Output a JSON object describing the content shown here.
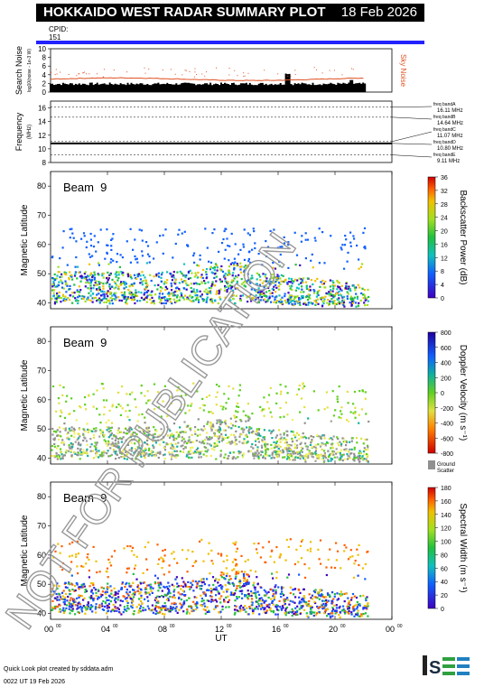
{
  "header": {
    "title": "HOKKAIDO WEST RADAR SUMMARY PLOT",
    "date": "18 Feb 2026"
  },
  "cpid": {
    "label": "CPID:",
    "value": "151"
  },
  "footer": {
    "credit": "Quick Look plot created by sddata.adm",
    "timestamp": "0022 UT 19 Feb 2026"
  },
  "logo_text": "ISEE",
  "watermark": "NOT FOR PUBLICATION",
  "colors": {
    "title_bg": "#000000",
    "cpid_bar": "#2222ff",
    "sky_noise": "#e05020"
  },
  "chart_data": [
    {
      "type": "bar",
      "title": "",
      "ylabel": "Search Noise",
      "ylabel_units": "log10(noise - 1e-3 W)",
      "right_label": "Sky Noise",
      "yticks": [
        "10",
        "8",
        "6",
        "4",
        "2",
        "0"
      ],
      "ylim": [
        0,
        10
      ],
      "xlim": [
        0,
        24
      ]
    },
    {
      "type": "line",
      "ylabel": "Frequency",
      "ylabel_units": "(MHz)",
      "yticks": [
        "16",
        "14",
        "12",
        "10",
        "8"
      ],
      "ylim": [
        8,
        17
      ],
      "freq_bands": [
        {
          "name": "freq bandA",
          "value": "16.11 MHz"
        },
        {
          "name": "freq bandB",
          "value": "14.64 MHz"
        },
        {
          "name": "freq bandC",
          "value": "11.07 MHz"
        },
        {
          "name": "freq bandD",
          "value": "10.80 MHz"
        },
        {
          "name": "freq bandE",
          "value": "9.11 MHz"
        }
      ]
    },
    {
      "type": "heatmap",
      "beam": "Beam  9",
      "ylabel": "Magnetic Latitude",
      "yticks": [
        "80",
        "70",
        "60",
        "50",
        "40"
      ],
      "ylim": [
        38,
        85
      ],
      "colorbar_label": "Backscatter Power (dB)",
      "colorbar_ticks": [
        "36",
        "32",
        "28",
        "24",
        "20",
        "16",
        "12",
        "8",
        "4",
        "0"
      ]
    },
    {
      "type": "heatmap",
      "beam": "Beam  9",
      "ylabel": "Magnetic Latitude",
      "yticks": [
        "80",
        "70",
        "60",
        "50",
        "40"
      ],
      "ylim": [
        38,
        85
      ],
      "colorbar_label": "Doppler Velocity (m s⁻¹)",
      "colorbar_ticks": [
        "800",
        "600",
        "400",
        "200",
        "0",
        "-200",
        "-400",
        "-600",
        "-800"
      ],
      "ground_scatter_label": "Ground Scatter"
    },
    {
      "type": "heatmap",
      "beam": "Beam  9",
      "ylabel": "Magnetic Latitude",
      "yticks": [
        "80",
        "70",
        "60",
        "50",
        "40"
      ],
      "ylim": [
        38,
        85
      ],
      "colorbar_label": "Spectral Width (m s⁻¹)",
      "colorbar_ticks": [
        "180",
        "160",
        "140",
        "120",
        "100",
        "80",
        "60",
        "40",
        "20",
        "0"
      ],
      "xlabel": "UT",
      "xticks": [
        "00",
        "04",
        "08",
        "12",
        "16",
        "20",
        "00"
      ],
      "xticks_sup": "00",
      "xlim": [
        0,
        24
      ]
    }
  ]
}
